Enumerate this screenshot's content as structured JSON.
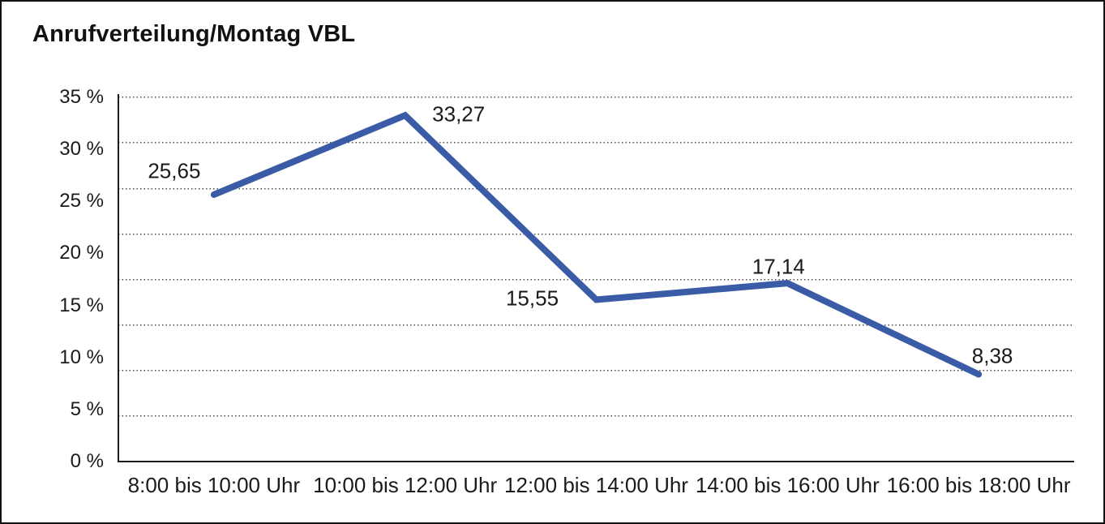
{
  "title": "Anrufverteilung/Montag VBL",
  "chart_data": {
    "type": "line",
    "title": "Anrufverteilung/Montag VBL",
    "categories": [
      "8:00 bis 10:00 Uhr",
      "10:00 bis 12:00 Uhr",
      "12:00 bis 14:00 Uhr",
      "14:00 bis 16:00 Uhr",
      "16:00 bis 18:00 Uhr"
    ],
    "values": [
      25.65,
      33.27,
      15.55,
      17.14,
      8.38
    ],
    "value_labels": [
      "25,65",
      "33,27",
      "15,55",
      "17,14",
      "8,38"
    ],
    "xlabel": "",
    "ylabel": "",
    "ylim": [
      0,
      35
    ],
    "y_tick_step": 5,
    "y_tick_labels": [
      "35 %",
      "30 %",
      "25 %",
      "20 %",
      "15 %",
      "10 %",
      "5 %",
      "0 %"
    ],
    "grid": "horizontal-dotted",
    "grid_divisions": 8,
    "legend": "none",
    "line_color": "#3a5ba6"
  }
}
